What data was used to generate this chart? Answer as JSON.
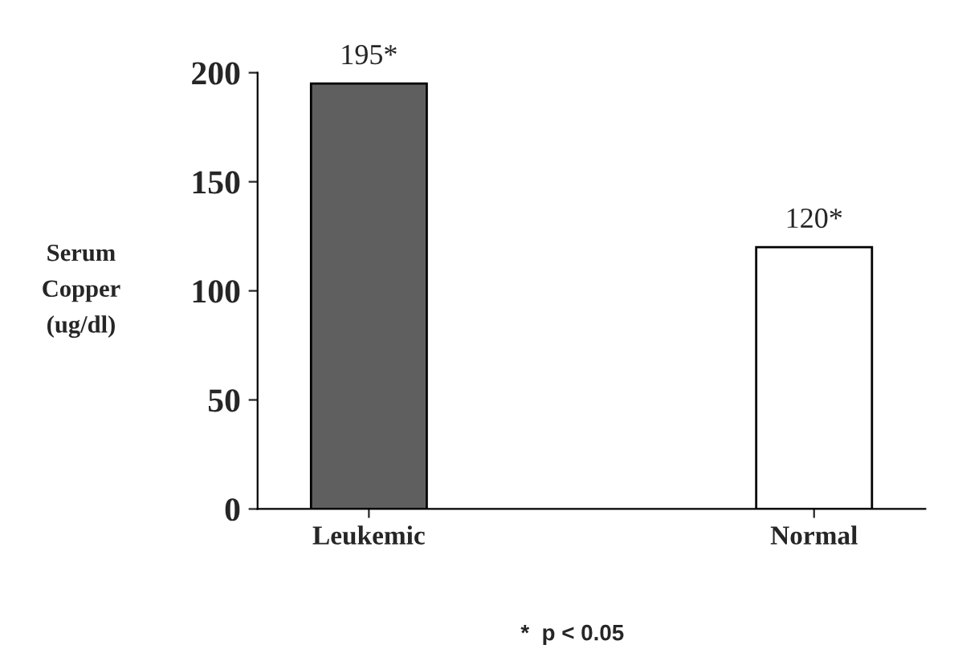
{
  "chart_data": {
    "type": "bar",
    "ylabel": "Serum\nCopper\n(ug/dl)",
    "categories": [
      "Leukemic",
      "Normal"
    ],
    "values": [
      195,
      120
    ],
    "colors": [
      "#5f5f5f",
      "#ffffff"
    ],
    "value_labels": [
      "195*",
      "120*"
    ],
    "ylim": [
      0,
      200
    ],
    "yticks": [
      0,
      50,
      100,
      150,
      200
    ],
    "grid": false,
    "legend": false,
    "annotations": [
      "*  p < 0.05"
    ]
  }
}
